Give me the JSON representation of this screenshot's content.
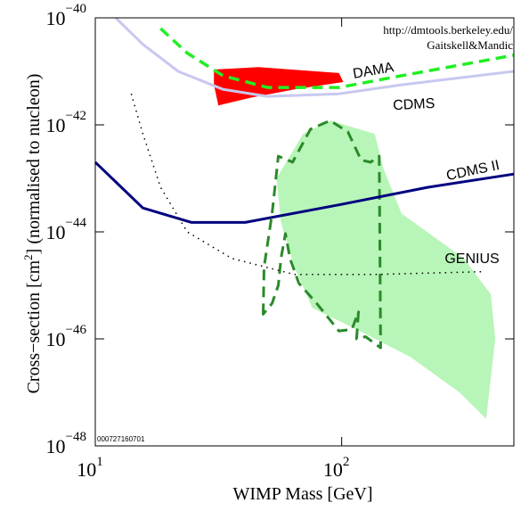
{
  "chart_data": {
    "type": "line",
    "x_label": "WIMP Mass [GeV]",
    "y_label": [
      "Cross−section [cm",
      "2",
      "] (normalised to nucleon)"
    ],
    "annotations": [
      "http://dmtools.berkeley.edu/",
      "Gaitskell&Mandic",
      "000727160701"
    ],
    "x_log": true,
    "y_log": true,
    "xlim": [
      10,
      500
    ],
    "ylim": [
      1e-48,
      1e-40
    ],
    "xticks": [
      {
        "value": 10,
        "label": "10",
        "exponent": "1"
      },
      {
        "value": 100,
        "label": "10",
        "exponent": "2"
      }
    ],
    "yticks": [
      {
        "value": 1e-48,
        "label": "10",
        "exponent": "−48"
      },
      {
        "value": 1e-46,
        "label": "10",
        "exponent": "−46"
      },
      {
        "value": 1e-44,
        "label": "10",
        "exponent": "−44"
      },
      {
        "value": 1e-42,
        "label": "10",
        "exponent": "−42"
      },
      {
        "value": 1e-40,
        "label": "10",
        "exponent": "−40"
      }
    ],
    "regions": [
      {
        "color": "#b8f5b8",
        "style": "fill",
        "x": [
          54.4,
          69.8,
          89.7,
          136,
          148,
          175,
          313,
          403,
          420,
          386,
          301,
          190,
          115,
          76,
          64.3,
          56.7
        ],
        "values": [
          1e-43,
          6.8e-43,
          1.2e-42,
          6.8e-43,
          1.5e-43,
          2.2e-44,
          3.2e-45,
          6.8e-46,
          1e-46,
          3.2e-48,
          1e-47,
          4.6e-47,
          1.5e-46,
          3.8e-46,
          2.2e-45,
          1.5e-44
        ]
      },
      {
        "color": "#ff0000",
        "style": "fill",
        "x": [
          30.3,
          46,
          97.5,
          101.6,
          64.3,
          42.4,
          31.6,
          30.3
        ],
        "values": [
          1.08e-41,
          1.2e-41,
          9.3e-42,
          6.3e-42,
          4.6e-42,
          3.2e-42,
          2.3e-42,
          5.6e-42
        ]
      },
      {
        "color": "#2a8a2a",
        "style": "dashed-closed",
        "x": [
          48,
          48.4,
          52.2,
          55.3,
          63.2,
          74.7,
          89.7,
          106,
          120,
          131,
          142,
          144,
          125,
          115,
          117,
          110,
          97.5,
          79.2,
          67,
          61.7,
          59.1,
          56.7,
          55.3,
          52.2
        ],
        "values": [
          2.9e-46,
          2.2e-45,
          2.2e-44,
          2.6e-43,
          2e-43,
          8.3e-43,
          1.2e-42,
          7.4e-43,
          2.2e-43,
          2e-43,
          2.6e-43,
          6.8e-47,
          1.1e-46,
          1e-46,
          3.2e-46,
          1.5e-46,
          1.4e-46,
          4.6e-46,
          1.1e-45,
          3.2e-45,
          9.3e-45,
          3.2e-45,
          1e-45,
          4.6e-46
        ]
      }
    ],
    "series": [
      {
        "name": "CDMS",
        "color": "#c8c8f0",
        "style": "solid",
        "x": [
          12.1,
          15.6,
          21.7,
          33,
          50,
          97.5,
          175,
          500
        ],
        "values": [
          1e-40,
          3.2e-41,
          1e-41,
          4.6e-42,
          3.4e-42,
          3.8e-42,
          5.6e-42,
          1e-41
        ]
      },
      {
        "name": "DAMA",
        "color": "#22ee22",
        "style": "dashed",
        "x": [
          18.4,
          23.6,
          33,
          50,
          97.5,
          175,
          500
        ],
        "values": [
          6.3e-41,
          2.2e-41,
          8.3e-42,
          5e-42,
          5e-42,
          8.3e-42,
          2e-41
        ]
      },
      {
        "name": "CDMS II",
        "color": "#000080",
        "style": "solid",
        "x": [
          10,
          15.6,
          24.6,
          40.6,
          97.5,
          224,
          500
        ],
        "values": [
          2e-43,
          2.8e-44,
          1.5e-44,
          1.5e-44,
          3.2e-44,
          6.8e-44,
          1.2e-43
        ]
      },
      {
        "name": "GENIUS",
        "color": "#000000",
        "style": "dotted",
        "x": [
          14,
          15.6,
          18.4,
          23.6,
          35.8,
          64.3,
          136,
          370
        ],
        "values": [
          3.8e-42,
          6.8e-43,
          6.8e-44,
          1e-44,
          3.2e-45,
          1.6e-45,
          1.6e-45,
          1.8e-45
        ]
      }
    ]
  }
}
